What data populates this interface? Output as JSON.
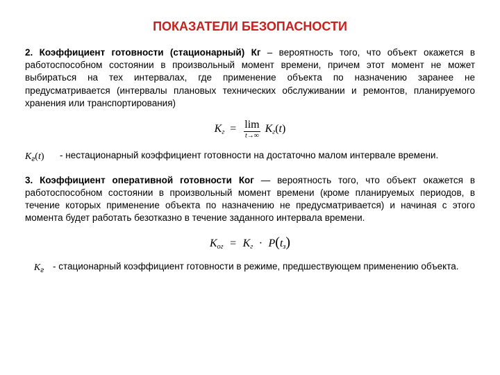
{
  "colors": {
    "title": "#c6201f",
    "text": "#000000",
    "background": "#ffffff"
  },
  "fonts": {
    "body_family": "Arial",
    "math_family": "Times New Roman",
    "title_size_pt": 18,
    "body_size_pt": 13.5
  },
  "title": "ПОКАЗАТЕЛИ БЕЗОПАСНОСТИ",
  "section2": {
    "lead": "2. Коэффициент готовности (стационарный) Кг",
    "rest": " – вероятность того, что объект окажется в работоспособном состоянии в  произвольный момент времени, причем этот момент не может выбираться на тех интервалах, где применение объекта по назначению заранее не предусматривается (интервалы плановых технических обслуживании и ремонтов, планируемого хранения или транспортирования)"
  },
  "formula1": {
    "lhs_base": "K",
    "lhs_sub": "г",
    "eq": "=",
    "lim_label": "lim",
    "lim_sub": "t→∞",
    "rhs_base": "K",
    "rhs_sub": "г",
    "rhs_arg": "t"
  },
  "term1": {
    "sym_base": "K",
    "sym_sub": "г",
    "sym_arg": "t",
    "text": "- нестационарный коэффициент готовности на достаточно малом интервале времени."
  },
  "section3": {
    "lead": "3. Коэффициент оперативной готовности Ког",
    "rest": " — вероятность того, что объект окажется в работоспособном состоянии в произвольный момент времени (кроме планируемых периодов, в течение которых применение объекта по назначению не предусматривается) и начиная с этого момента будет работать безотказно в течение заданного  интервала времени."
  },
  "formula2": {
    "lhs_base": "K",
    "lhs_sub": "ог",
    "eq": "=",
    "mid_base": "K",
    "mid_sub": "г",
    "dot": "·",
    "p_base": "P",
    "p_arg_base": "t",
    "p_arg_sub": "з"
  },
  "term2": {
    "sym_base": "K",
    "sym_sub": "г",
    "text": "- стационарный коэффициент готовности в режиме,  предшествующем применению объекта."
  }
}
